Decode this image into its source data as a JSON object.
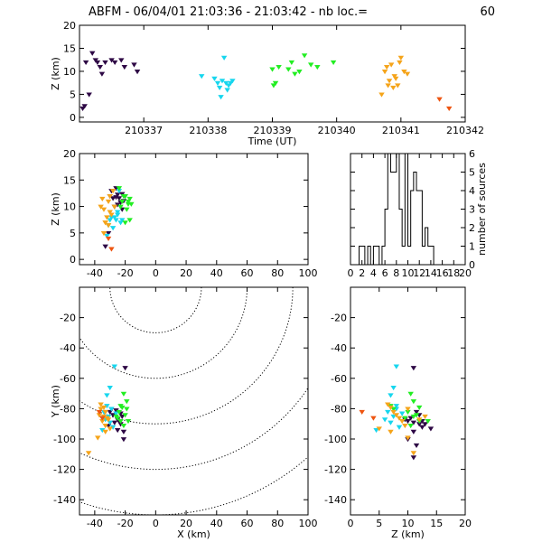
{
  "header": {
    "title": "ABFM - 06/04/01 21:03:36 - 21:03:42 - nb loc.=",
    "count": "60"
  },
  "colors": {
    "purple": "#2e0845",
    "cyan": "#17d6ee",
    "green": "#22ee22",
    "orange": "#f5a41a",
    "red": "#ee5511"
  },
  "chart_data": [
    {
      "id": "time",
      "type": "scatter",
      "xlabel": "Time (UT)",
      "ylabel": "Z (km)",
      "xlim": [
        210336,
        210342
      ],
      "ylim": [
        -1,
        20
      ],
      "xticks": [
        210337,
        210338,
        210339,
        210340,
        210341,
        210342
      ],
      "yticks": [
        0,
        5,
        10,
        15,
        20
      ],
      "groups": [
        {
          "color": "purple",
          "points": [
            [
              210336.05,
              2.0
            ],
            [
              210336.08,
              2.5
            ],
            [
              210336.1,
              12.0
            ],
            [
              210336.15,
              5.0
            ],
            [
              210336.2,
              14.0
            ],
            [
              210336.25,
              12.5
            ],
            [
              210336.32,
              11.0
            ],
            [
              210336.35,
              9.5
            ],
            [
              210336.4,
              12.0
            ],
            [
              210336.55,
              12.0
            ],
            [
              210336.65,
              12.5
            ],
            [
              210336.7,
              11.0
            ],
            [
              210336.85,
              11.5
            ],
            [
              210336.9,
              10.0
            ],
            [
              210336.5,
              12.5
            ],
            [
              210336.28,
              12.0
            ]
          ]
        },
        {
          "color": "cyan",
          "points": [
            [
              210337.9,
              9.0
            ],
            [
              210338.1,
              8.5
            ],
            [
              210338.15,
              7.5
            ],
            [
              210338.18,
              6.5
            ],
            [
              210338.2,
              4.5
            ],
            [
              210338.25,
              13.0
            ],
            [
              210338.28,
              7.5
            ],
            [
              210338.32,
              7.0
            ],
            [
              210338.35,
              7.5
            ],
            [
              210338.22,
              8.0
            ],
            [
              210338.3,
              6.0
            ],
            [
              210338.38,
              8.0
            ]
          ]
        },
        {
          "color": "green",
          "points": [
            [
              210339.0,
              10.5
            ],
            [
              210339.02,
              7.0
            ],
            [
              210339.05,
              7.5
            ],
            [
              210339.1,
              11.0
            ],
            [
              210339.25,
              10.5
            ],
            [
              210339.3,
              12.0
            ],
            [
              210339.35,
              9.5
            ],
            [
              210339.42,
              10.0
            ],
            [
              210339.5,
              13.5
            ],
            [
              210339.6,
              11.5
            ],
            [
              210339.7,
              11.0
            ],
            [
              210339.95,
              12.0
            ]
          ]
        },
        {
          "color": "orange",
          "points": [
            [
              210340.7,
              5.0
            ],
            [
              210340.75,
              10.0
            ],
            [
              210340.8,
              7.0
            ],
            [
              210340.82,
              8.0
            ],
            [
              210340.85,
              11.5
            ],
            [
              210340.88,
              6.5
            ],
            [
              210340.9,
              9.0
            ],
            [
              210340.92,
              8.5
            ],
            [
              210340.95,
              7.0
            ],
            [
              210340.98,
              12.0
            ],
            [
              210341.0,
              13.0
            ],
            [
              210341.05,
              10.0
            ],
            [
              210341.1,
              9.5
            ],
            [
              210340.78,
              11.0
            ]
          ]
        },
        {
          "color": "red",
          "points": [
            [
              210341.6,
              4.0
            ],
            [
              210341.75,
              2.0
            ]
          ]
        }
      ]
    },
    {
      "id": "xz",
      "type": "scatter",
      "xlabel": "",
      "ylabel": "Z (km)",
      "xlim": [
        -50,
        100
      ],
      "ylim": [
        -1,
        20
      ],
      "xticks": [
        -40,
        -20,
        0,
        20,
        40,
        60,
        80,
        100
      ],
      "yticks": [
        0,
        5,
        10,
        15,
        20
      ],
      "groups": [
        {
          "color": "purple",
          "points": [
            [
              -29,
              13.0
            ],
            [
              -26,
              11.8
            ],
            [
              -23,
              10.8
            ],
            [
              -25,
              12.3
            ],
            [
              -22,
              12.4
            ],
            [
              -25,
              10.4
            ],
            [
              -21,
              11.1
            ],
            [
              -31,
              5.0
            ],
            [
              -33,
              2.5
            ],
            [
              -28,
              11.6
            ],
            [
              -20,
              12.0
            ],
            [
              -27,
              10.0
            ],
            [
              -24,
              11.6
            ],
            [
              -30,
              12.0
            ],
            [
              -22,
              9.5
            ],
            [
              -26,
              13.5
            ]
          ]
        },
        {
          "color": "cyan",
          "points": [
            [
              -25,
              9.0
            ],
            [
              -27,
              8.0
            ],
            [
              -30,
              7.5
            ],
            [
              -31,
              6.5
            ],
            [
              -28,
              6.0
            ],
            [
              -32,
              4.5
            ],
            [
              -24,
              13.0
            ],
            [
              -23,
              7.0
            ],
            [
              -26,
              7.5
            ],
            [
              -29,
              8.0
            ],
            [
              -22,
              7.5
            ],
            [
              -25,
              8.5
            ]
          ]
        },
        {
          "color": "green",
          "points": [
            [
              -18,
              10.5
            ],
            [
              -20,
              7.0
            ],
            [
              -17,
              7.5
            ],
            [
              -22,
              11.0
            ],
            [
              -16,
              10.5
            ],
            [
              -21,
              12.0
            ],
            [
              -19,
              9.5
            ],
            [
              -23,
              10.0
            ],
            [
              -24,
              13.5
            ],
            [
              -17,
              11.5
            ],
            [
              -18,
              11.0
            ],
            [
              -20,
              12.0
            ]
          ]
        },
        {
          "color": "orange",
          "points": [
            [
              -34,
              5.0
            ],
            [
              -36,
              10.0
            ],
            [
              -33,
              7.0
            ],
            [
              -32,
              8.0
            ],
            [
              -35,
              11.5
            ],
            [
              -31,
              6.5
            ],
            [
              -30,
              9.0
            ],
            [
              -29,
              8.5
            ],
            [
              -33,
              7.0
            ],
            [
              -30,
              12.0
            ],
            [
              -28,
              13.0
            ],
            [
              -27,
              10.0
            ],
            [
              -34,
              9.5
            ],
            [
              -31,
              11.0
            ]
          ]
        },
        {
          "color": "red",
          "points": [
            [
              -31,
              4.0
            ],
            [
              -29,
              2.0
            ]
          ]
        }
      ]
    },
    {
      "id": "hist",
      "type": "histogram",
      "xlabel": "",
      "ylabel": "number of sources",
      "xlim": [
        0,
        20
      ],
      "ylim": [
        0,
        6
      ],
      "xticks": [
        0,
        2,
        4,
        6,
        8,
        10,
        12,
        14,
        16,
        18,
        20
      ],
      "yticks": [
        0,
        1,
        2,
        3,
        4,
        5,
        6
      ],
      "bin_width": 0.5,
      "bin_edges_start": 1.5,
      "counts": [
        1,
        1,
        0,
        1,
        0,
        1,
        1,
        0,
        1,
        3,
        6,
        5,
        5,
        6,
        3,
        1,
        6,
        1,
        4,
        5,
        4,
        4,
        1,
        2,
        1,
        1
      ]
    },
    {
      "id": "xy",
      "type": "scatter",
      "xlabel": "X (km)",
      "ylabel": "Y (km)",
      "xlim": [
        -50,
        100
      ],
      "ylim": [
        -150,
        0
      ],
      "xticks": [
        -40,
        -20,
        0,
        20,
        40,
        60,
        80,
        100
      ],
      "yticks": [
        -140,
        -120,
        -100,
        -80,
        -60,
        -40,
        -20
      ],
      "range_rings_km": [
        30,
        60,
        90,
        120,
        150
      ],
      "ring_center": [
        0,
        0
      ],
      "groups": [
        {
          "color": "purple",
          "points": [
            [
              -20,
              -53
            ],
            [
              -21,
              -95
            ],
            [
              -23,
              -90
            ],
            [
              -25,
              -87
            ],
            [
              -28,
              -84
            ],
            [
              -22,
              -85
            ],
            [
              -26,
              -81
            ],
            [
              -30,
              -82
            ],
            [
              -24,
              -88
            ],
            [
              -27,
              -89
            ],
            [
              -21,
              -100
            ],
            [
              -31,
              -91
            ],
            [
              -35,
              -86
            ],
            [
              -29,
              -80
            ],
            [
              -25,
              -94
            ],
            [
              -23,
              -83
            ]
          ]
        },
        {
          "color": "cyan",
          "points": [
            [
              -27,
              -52
            ],
            [
              -30,
              -66
            ],
            [
              -32,
              -71
            ],
            [
              -34,
              -82
            ],
            [
              -29,
              -80
            ],
            [
              -31,
              -85
            ],
            [
              -33,
              -87
            ],
            [
              -28,
              -92
            ],
            [
              -35,
              -94
            ],
            [
              -30,
              -89
            ],
            [
              -26,
              -83
            ],
            [
              -32,
              -78
            ]
          ]
        },
        {
          "color": "green",
          "points": [
            [
              -21,
              -70
            ],
            [
              -19,
              -75
            ],
            [
              -22,
              -79
            ],
            [
              -24,
              -82
            ],
            [
              -20,
              -84
            ],
            [
              -23,
              -88
            ],
            [
              -18,
              -88
            ],
            [
              -25,
              -86
            ],
            [
              -21,
              -91
            ],
            [
              -26,
              -85
            ],
            [
              -23,
              -78
            ],
            [
              -19,
              -80
            ]
          ]
        },
        {
          "color": "orange",
          "points": [
            [
              -36,
              -77
            ],
            [
              -34,
              -79
            ],
            [
              -33,
              -82
            ],
            [
              -37,
              -84
            ],
            [
              -32,
              -86
            ],
            [
              -35,
              -88
            ],
            [
              -33,
              -91
            ],
            [
              -30,
              -93
            ],
            [
              -38,
              -99
            ],
            [
              -44,
              -109
            ],
            [
              -31,
              -87
            ],
            [
              -34,
              -85
            ],
            [
              -36,
              -80
            ],
            [
              -33,
              -95
            ]
          ]
        },
        {
          "color": "red",
          "points": [
            [
              -37,
              -82
            ],
            [
              -35,
              -86
            ]
          ]
        }
      ]
    },
    {
      "id": "zy",
      "type": "scatter",
      "xlabel": "Z (km)",
      "ylabel": "",
      "xlim": [
        0,
        20
      ],
      "ylim": [
        -150,
        0
      ],
      "xticks": [
        0,
        5,
        10,
        15,
        20
      ],
      "yticks": [
        -140,
        -120,
        -100,
        -80,
        -60,
        -40,
        -20
      ],
      "groups": [
        {
          "color": "purple",
          "points": [
            [
              11.0,
              -53
            ],
            [
              11.0,
              -95
            ],
            [
              12.0,
              -90
            ],
            [
              12.5,
              -88
            ],
            [
              10.5,
              -86
            ],
            [
              12.0,
              -84
            ],
            [
              11.5,
              -82
            ],
            [
              13.0,
              -90
            ],
            [
              10.0,
              -88
            ],
            [
              14.0,
              -93
            ],
            [
              10.0,
              -100
            ],
            [
              12.5,
              -92
            ],
            [
              11.0,
              -89
            ],
            [
              9.5,
              -87
            ],
            [
              11.5,
              -104
            ],
            [
              11.0,
              -112
            ]
          ]
        },
        {
          "color": "cyan",
          "points": [
            [
              8.0,
              -52
            ],
            [
              7.5,
              -66
            ],
            [
              7.0,
              -71
            ],
            [
              6.5,
              -82
            ],
            [
              8.0,
              -80
            ],
            [
              7.5,
              -85
            ],
            [
              6.0,
              -87
            ],
            [
              8.5,
              -92
            ],
            [
              4.5,
              -94
            ],
            [
              7.0,
              -89
            ],
            [
              9.0,
              -83
            ],
            [
              8.0,
              -78
            ]
          ]
        },
        {
          "color": "green",
          "points": [
            [
              10.5,
              -70
            ],
            [
              11.0,
              -75
            ],
            [
              12.0,
              -79
            ],
            [
              10.0,
              -82
            ],
            [
              11.5,
              -84
            ],
            [
              12.0,
              -88
            ],
            [
              13.5,
              -88
            ],
            [
              9.5,
              -86
            ],
            [
              10.5,
              -91
            ],
            [
              11.0,
              -85
            ],
            [
              7.0,
              -78
            ],
            [
              7.5,
              -80
            ]
          ]
        },
        {
          "color": "orange",
          "points": [
            [
              6.5,
              -77
            ],
            [
              7.0,
              -79
            ],
            [
              7.5,
              -82
            ],
            [
              8.0,
              -84
            ],
            [
              8.5,
              -86
            ],
            [
              9.0,
              -88
            ],
            [
              9.5,
              -91
            ],
            [
              5.0,
              -93
            ],
            [
              10.0,
              -99
            ],
            [
              11.0,
              -109
            ],
            [
              12.0,
              -87
            ],
            [
              13.0,
              -85
            ],
            [
              10.0,
              -80
            ],
            [
              7.0,
              -95
            ]
          ]
        },
        {
          "color": "red",
          "points": [
            [
              2.0,
              -82
            ],
            [
              4.0,
              -86
            ]
          ]
        }
      ]
    }
  ]
}
